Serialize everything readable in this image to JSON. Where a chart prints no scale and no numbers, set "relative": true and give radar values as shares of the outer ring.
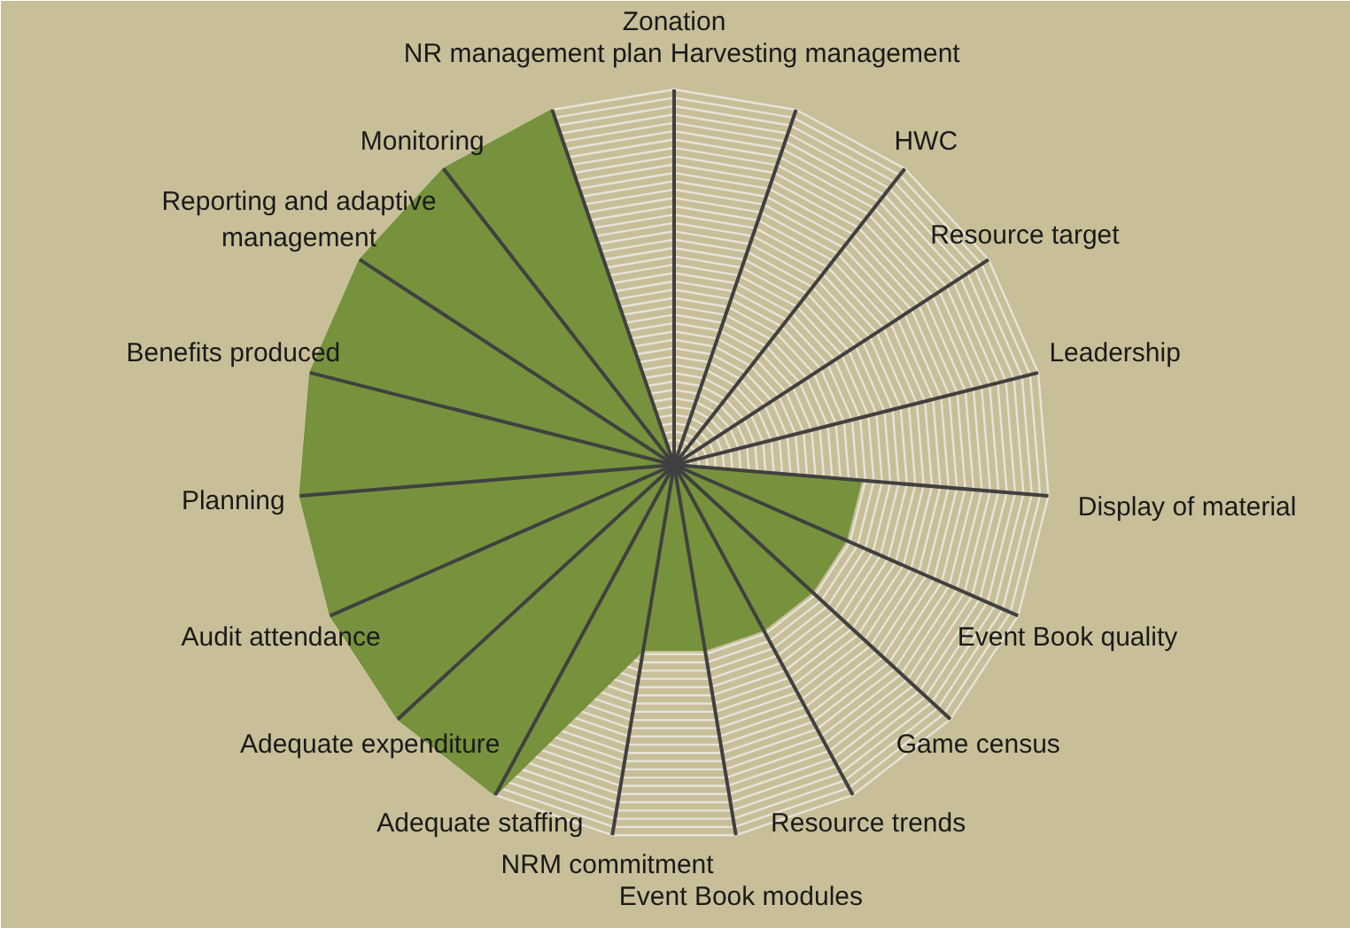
{
  "chart_data": {
    "type": "radar",
    "relative": true,
    "grid": true,
    "categories": [
      "Zonation",
      "Harvesting management",
      "HWC",
      "Resource target",
      "Leadership",
      "Display of material",
      "Event Book quality",
      "Game census",
      "Resource trends",
      "Event Book modules",
      "NRM commitment",
      "Adequate staffing",
      "Adequate expenditure",
      "Audit attendance",
      "Planning",
      "Benefits produced",
      "Reporting and adaptive\nmanagement",
      "Monitoring",
      "NR management plan"
    ],
    "series": [
      {
        "color": "#76923c",
        "values": [
          0,
          0,
          0,
          0,
          0,
          0.5,
          0.5,
          0.5,
          0.5,
          0.5,
          0.5,
          1,
          1,
          1,
          1,
          1,
          1,
          1,
          1
        ]
      }
    ]
  }
}
